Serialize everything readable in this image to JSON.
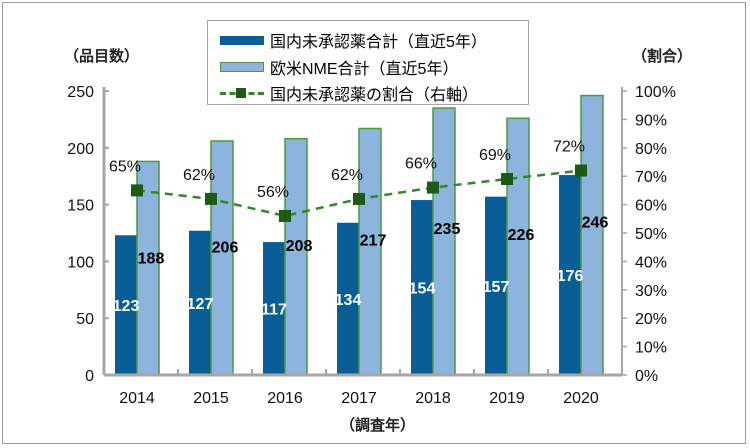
{
  "chart_data": {
    "type": "bar",
    "categories": [
      "2014",
      "2015",
      "2016",
      "2017",
      "2018",
      "2019",
      "2020"
    ],
    "series": [
      {
        "name": "国内未承認薬合計（直近5年）",
        "type": "bar",
        "axis": "left",
        "color": "#0a5e97",
        "values": [
          123,
          127,
          117,
          134,
          154,
          157,
          176
        ]
      },
      {
        "name": "欧米NME合計（直近5年）",
        "type": "bar",
        "axis": "left",
        "color": "#8db4dc",
        "values": [
          188,
          206,
          208,
          217,
          235,
          226,
          246
        ]
      },
      {
        "name": "国内未承認薬の割合（右軸）",
        "type": "line",
        "axis": "right",
        "color": "#2e8b24",
        "values": [
          65,
          62,
          56,
          62,
          66,
          69,
          72
        ],
        "labels": [
          "65%",
          "62%",
          "56%",
          "62%",
          "66%",
          "69%",
          "72%"
        ]
      }
    ],
    "ylabel": "（品目数）",
    "y2label": "（割合）",
    "xlabel": "（調査年）",
    "ylim": [
      0,
      250
    ],
    "yticks": [
      "0",
      "50",
      "100",
      "150",
      "200",
      "250"
    ],
    "y2lim": [
      0,
      100
    ],
    "y2ticks": [
      "0%",
      "10%",
      "20%",
      "30%",
      "40%",
      "50%",
      "60%",
      "70%",
      "80%",
      "90%",
      "100%"
    ],
    "legend": "top-center",
    "grid": false
  }
}
